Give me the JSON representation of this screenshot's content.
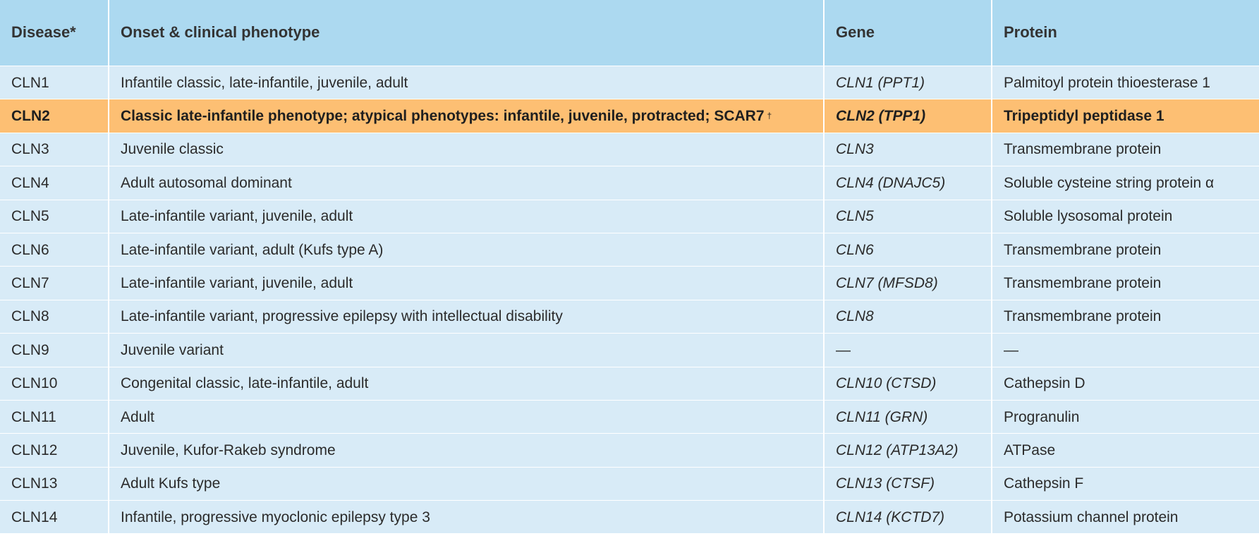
{
  "table": {
    "headers": [
      "Disease*",
      "Onset & clinical phenotype",
      "Gene",
      "Protein"
    ],
    "highlight_color": "#fdbf73",
    "header_color": "#acd9f0",
    "row_color": "#d8ebf7",
    "rows": [
      {
        "disease": "CLN1",
        "phenotype": "Infantile classic, late-infantile, juvenile, adult",
        "gene": "CLN1 (PPT1)",
        "protein": "Palmitoyl protein thioesterase 1"
      },
      {
        "disease": "CLN2",
        "phenotype": "Classic late-infantile phenotype; atypical phenotypes: infantile, juvenile, protracted; SCAR7",
        "phenotype_sup": "†",
        "gene": "CLN2 (TPP1)",
        "protein": "Tripeptidyl peptidase 1"
      },
      {
        "disease": "CLN3",
        "phenotype": "Juvenile classic",
        "gene": "CLN3",
        "protein": "Transmembrane protein"
      },
      {
        "disease": "CLN4",
        "phenotype": "Adult autosomal dominant",
        "gene": "CLN4 (DNAJC5)",
        "protein": "Soluble cysteine string protein α"
      },
      {
        "disease": "CLN5",
        "phenotype": "Late-infantile variant, juvenile, adult",
        "gene": "CLN5",
        "protein": "Soluble lysosomal protein"
      },
      {
        "disease": "CLN6",
        "phenotype": "Late-infantile variant, adult (Kufs type A)",
        "gene": "CLN6",
        "protein": "Transmembrane protein"
      },
      {
        "disease": "CLN7",
        "phenotype": "Late-infantile variant, juvenile, adult",
        "gene": "CLN7 (MFSD8)",
        "protein": "Transmembrane protein"
      },
      {
        "disease": "CLN8",
        "phenotype": "Late-infantile variant, progressive epilepsy with intellectual disability",
        "gene": "CLN8",
        "protein": "Transmembrane protein"
      },
      {
        "disease": "CLN9",
        "phenotype": "Juvenile variant",
        "gene": "—",
        "protein": "—"
      },
      {
        "disease": "CLN10",
        "phenotype": "Congenital classic, late-infantile, adult",
        "gene": "CLN10 (CTSD)",
        "protein": "Cathepsin D"
      },
      {
        "disease": "CLN11",
        "phenotype": "Adult",
        "gene": "CLN11 (GRN)",
        "protein": "Progranulin"
      },
      {
        "disease": "CLN12",
        "phenotype": "Juvenile, Kufor-Rakeb syndrome",
        "gene": "CLN12 (ATP13A2)",
        "protein": "ATPase"
      },
      {
        "disease": "CLN13",
        "phenotype": "Adult Kufs type",
        "gene": "CLN13 (CTSF)",
        "protein": "Cathepsin F"
      },
      {
        "disease": "CLN14",
        "phenotype": "Infantile, progressive myoclonic epilepsy type 3",
        "gene": "CLN14 (KCTD7)",
        "protein": "Potassium channel protein"
      }
    ]
  }
}
